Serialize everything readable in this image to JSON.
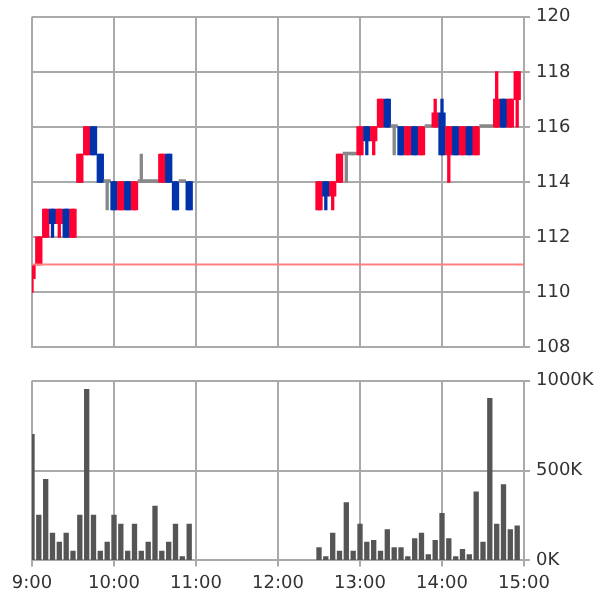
{
  "chart_data": [
    {
      "type": "candlestick",
      "x": [
        9,
        9.083,
        9.167,
        9.25,
        9.333,
        9.417,
        9.5,
        9.583,
        9.667,
        9.75,
        9.833,
        9.917,
        10,
        10.083,
        10.167,
        10.25,
        10.333,
        10.417,
        10.5,
        10.583,
        10.667,
        10.75,
        10.833,
        10.917,
        12.5,
        12.583,
        12.667,
        12.75,
        12.833,
        12.917,
        13,
        13.083,
        13.167,
        13.25,
        13.333,
        13.417,
        13.5,
        13.583,
        13.667,
        13.75,
        13.833,
        13.917,
        14,
        14.083,
        14.167,
        14.25,
        14.333,
        14.417,
        14.5,
        14.583,
        14.667,
        14.75,
        14.833,
        14.917
      ],
      "ohlc": [
        [
          110.5,
          111,
          110,
          111
        ],
        [
          111,
          112,
          111,
          112
        ],
        [
          112,
          113,
          112,
          113
        ],
        [
          113,
          113,
          112,
          112.5
        ],
        [
          112.5,
          113,
          112,
          113
        ],
        [
          113,
          113,
          112,
          112
        ],
        [
          112,
          113,
          112,
          113
        ],
        [
          114,
          115,
          114,
          115
        ],
        [
          115,
          116,
          115,
          116
        ],
        [
          116,
          116,
          115,
          115
        ],
        [
          115,
          115,
          114,
          114
        ],
        [
          114,
          114,
          113,
          114
        ],
        [
          114,
          114,
          113,
          113
        ],
        [
          113,
          114,
          113,
          114
        ],
        [
          114,
          114,
          113,
          113
        ],
        [
          113,
          114,
          113,
          114
        ],
        [
          114,
          115,
          114,
          114
        ],
        [
          114,
          114,
          114,
          114
        ],
        [
          114,
          114,
          114,
          114
        ],
        [
          114,
          115,
          114,
          115
        ],
        [
          115,
          115,
          114,
          114
        ],
        [
          114,
          114,
          113,
          113
        ],
        [
          114,
          114,
          114,
          114
        ],
        [
          114,
          114,
          113,
          113
        ],
        [
          113,
          114,
          113,
          114
        ],
        [
          114,
          114,
          113,
          113.5
        ],
        [
          113.5,
          114,
          113,
          114
        ],
        [
          114,
          115,
          114,
          115
        ],
        [
          115,
          115,
          114,
          115
        ],
        [
          115,
          115,
          115,
          115
        ],
        [
          115,
          116,
          115,
          116
        ],
        [
          116,
          116,
          115,
          115.5
        ],
        [
          115.5,
          116,
          115,
          116
        ],
        [
          116,
          117,
          116,
          117
        ],
        [
          117,
          117,
          116,
          116
        ],
        [
          116,
          116,
          115,
          116
        ],
        [
          116,
          116,
          115,
          115
        ],
        [
          115,
          116,
          115,
          116
        ],
        [
          116,
          116,
          115,
          115
        ],
        [
          115,
          116,
          115,
          116
        ],
        [
          116,
          116,
          116,
          116
        ],
        [
          116,
          117,
          116,
          116.5
        ],
        [
          116.5,
          117,
          115,
          115
        ],
        [
          115,
          116,
          114,
          116
        ],
        [
          116,
          116,
          115,
          115
        ],
        [
          115,
          116,
          115,
          116
        ],
        [
          116,
          116,
          115,
          115
        ],
        [
          115,
          116,
          115,
          116
        ],
        [
          116,
          116,
          116,
          116
        ],
        [
          116,
          116,
          116,
          116
        ],
        [
          116,
          118,
          116,
          117
        ],
        [
          117,
          117,
          116,
          116
        ],
        [
          116,
          117,
          116,
          117
        ],
        [
          117,
          118,
          116,
          118
        ]
      ],
      "colors": [
        "#ff0033",
        "#ff0033",
        "#ff0033",
        "#0033aa",
        "#ff0033",
        "#0033aa",
        "#ff0033",
        "#ff0033",
        "#ff0033",
        "#0033aa",
        "#0033aa",
        "#888888",
        "#0033aa",
        "#ff0033",
        "#0033aa",
        "#ff0033",
        "#888888",
        "#888888",
        "#888888",
        "#ff0033",
        "#0033aa",
        "#0033aa",
        "#888888",
        "#0033aa",
        "#ff0033",
        "#0033aa",
        "#ff0033",
        "#ff0033",
        "#888888",
        "#888888",
        "#ff0033",
        "#0033aa",
        "#ff0033",
        "#ff0033",
        "#0033aa",
        "#888888",
        "#0033aa",
        "#ff0033",
        "#0033aa",
        "#ff0033",
        "#888888",
        "#ff0033",
        "#0033aa",
        "#ff0033",
        "#0033aa",
        "#ff0033",
        "#0033aa",
        "#ff0033",
        "#888888",
        "#888888",
        "#ff0033",
        "#0033aa",
        "#ff0033",
        "#ff0033"
      ],
      "xlim": [
        9,
        15
      ],
      "xticks": [
        {
          "value": 9,
          "label": null
        },
        {
          "value": 10,
          "label": null
        },
        {
          "value": 11,
          "label": null
        },
        {
          "value": 12,
          "label": null
        },
        {
          "value": 13,
          "label": null
        },
        {
          "value": 14,
          "label": null
        },
        {
          "value": 15,
          "label": null
        }
      ],
      "ylim": [
        108,
        120
      ],
      "yticks": [
        108,
        110,
        112,
        114,
        116,
        118,
        120
      ],
      "ref_lines": [
        {
          "axis": "y",
          "value": 111,
          "color": "#ff8080"
        }
      ],
      "grid": true,
      "tick_labels": "y"
    },
    {
      "type": "bar",
      "color": "#555555",
      "x": [
        9,
        9.083,
        9.167,
        9.25,
        9.333,
        9.417,
        9.5,
        9.583,
        9.667,
        9.75,
        9.833,
        9.917,
        10,
        10.083,
        10.167,
        10.25,
        10.333,
        10.417,
        10.5,
        10.583,
        10.667,
        10.75,
        10.833,
        10.917,
        12.5,
        12.583,
        12.667,
        12.75,
        12.833,
        12.917,
        13,
        13.083,
        13.167,
        13.25,
        13.333,
        13.417,
        13.5,
        13.583,
        13.667,
        13.75,
        13.833,
        13.917,
        14,
        14.083,
        14.167,
        14.25,
        14.333,
        14.417,
        14.5,
        14.583,
        14.667,
        14.75,
        14.833,
        14.917
      ],
      "values": [
        700000,
        250000,
        450000,
        150000,
        100000,
        150000,
        50000,
        250000,
        950000,
        250000,
        50000,
        100000,
        250000,
        200000,
        50000,
        200000,
        50000,
        100000,
        300000,
        50000,
        100000,
        200000,
        20000,
        200000,
        70000,
        20000,
        150000,
        50000,
        320000,
        50000,
        200000,
        100000,
        110000,
        50000,
        170000,
        70000,
        70000,
        20000,
        120000,
        150000,
        30000,
        110000,
        260000,
        120000,
        20000,
        60000,
        30000,
        380000,
        100000,
        900000,
        200000,
        420000,
        170000,
        190000
      ],
      "xlim": [
        9,
        15
      ],
      "xticks": [
        {
          "value": 9,
          "label": "9:00"
        },
        {
          "value": 10,
          "label": "10:00"
        },
        {
          "value": 11,
          "label": "11:00"
        },
        {
          "value": 12,
          "label": "12:00"
        },
        {
          "value": 13,
          "label": "13:00"
        },
        {
          "value": 14,
          "label": "14:00"
        },
        {
          "value": 15,
          "label": "15:00"
        }
      ],
      "ylim": [
        0,
        1000000
      ],
      "yticks": [
        {
          "value": 0,
          "label": "0K"
        },
        {
          "value": 500000,
          "label": "500K"
        },
        {
          "value": 1000000,
          "label": "1000K"
        }
      ],
      "grid": true
    }
  ]
}
